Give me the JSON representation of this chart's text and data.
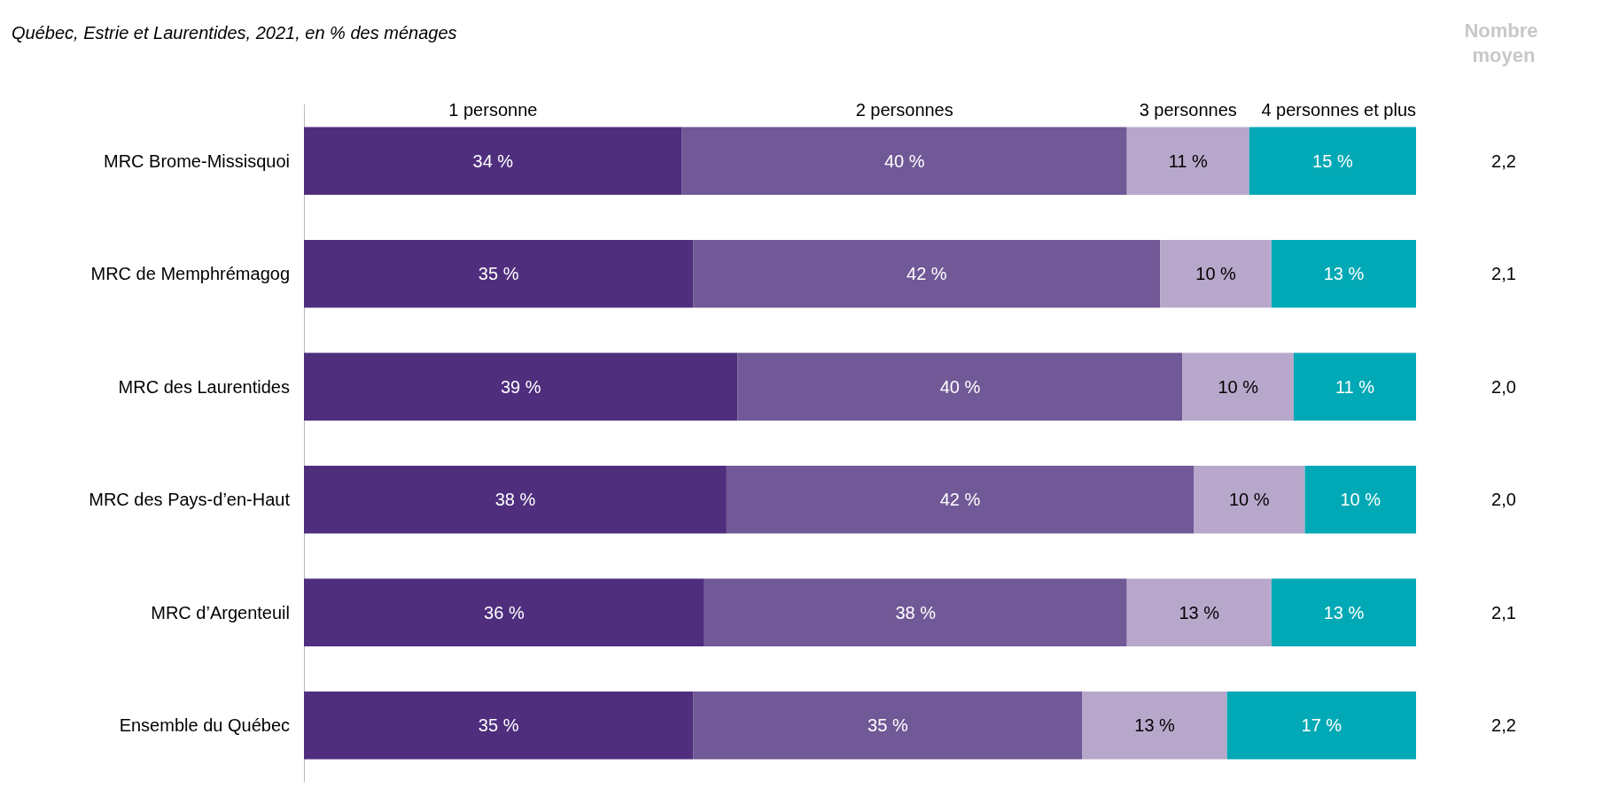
{
  "chart_data": {
    "type": "bar",
    "orientation": "horizontal",
    "stacked": true,
    "title": "Québec, Estrie et Laurentides, 2021, en % des ménages",
    "categories": [
      "MRC Brome-Missisquoi",
      "MRC de Memphrémagog",
      "MRC des Laurentides",
      "MRC des Pays-d’en-Haut",
      "MRC d’Argenteuil",
      "Ensemble du Québec"
    ],
    "series": [
      {
        "name": "1 personne",
        "color": "#4f2e7e",
        "values": [
          34,
          35,
          39,
          38,
          36,
          35
        ],
        "value_labels": [
          "34 %",
          "35 %",
          "39 %",
          "38 %",
          "36 %",
          "35 %"
        ]
      },
      {
        "name": "2 personnes",
        "color": "#715896",
        "values": [
          40,
          42,
          40,
          42,
          38,
          35
        ],
        "value_labels": [
          "40 %",
          "42 %",
          "40 %",
          "42 %",
          "38 %",
          "35 %"
        ]
      },
      {
        "name": "3 personnes",
        "color": "#b7a8cb",
        "values": [
          11,
          10,
          10,
          10,
          13,
          13
        ],
        "value_labels": [
          "11 %",
          "10 %",
          "10 %",
          "10 %",
          "13 %",
          "13 %"
        ]
      },
      {
        "name": "4 personnes et plus",
        "color": "#00a9b5",
        "values": [
          15,
          13,
          11,
          10,
          13,
          17
        ],
        "value_labels": [
          "15 %",
          "13 %",
          "11 %",
          "10 %",
          "13 %",
          "17 %"
        ]
      }
    ],
    "legend": "top",
    "annotations": [
      "Nombre moyen",
      "2,2",
      "2,1",
      "2,0",
      "2,0",
      "2,1",
      "2,2"
    ]
  }
}
